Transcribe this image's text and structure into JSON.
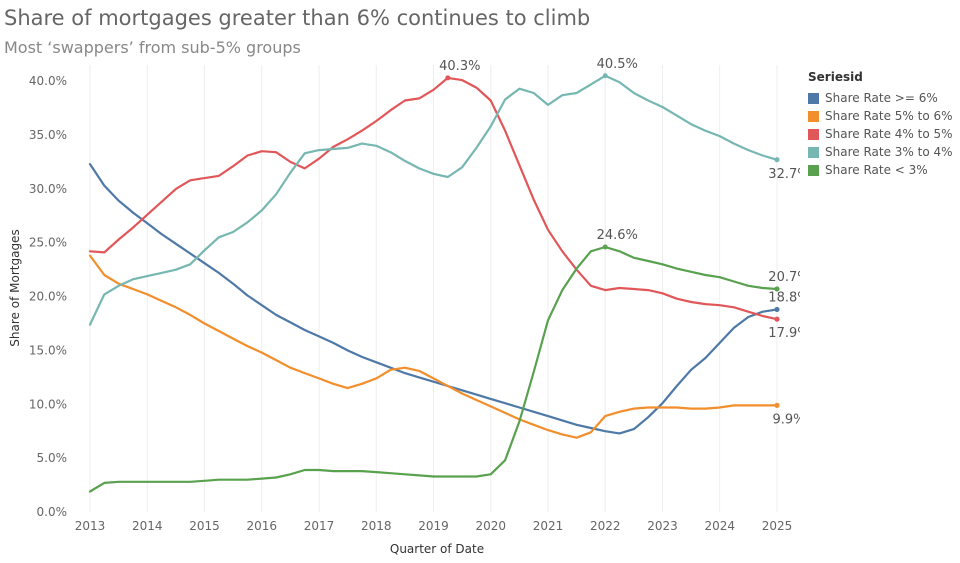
{
  "title": "Share of mortgages greater than  6% continues to climb",
  "subtitle": "Most ‘swappers’ from sub-5% groups",
  "chart_data": {
    "type": "line",
    "xlabel": "Quarter of Date",
    "ylabel": "Share of Mortgages",
    "xlim": [
      2012.65,
      2025.35
    ],
    "ylim": [
      0,
      41.5
    ],
    "x_ticks": [
      2013,
      2014,
      2015,
      2016,
      2017,
      2018,
      2019,
      2020,
      2021,
      2022,
      2023,
      2024,
      2025
    ],
    "x_tick_labels": [
      "2013",
      "2014",
      "2015",
      "2016",
      "2017",
      "2018",
      "2019",
      "2020",
      "2021",
      "2022",
      "2023",
      "2024",
      "2025"
    ],
    "y_ticks": [
      0,
      5,
      10,
      15,
      20,
      25,
      30,
      35,
      40
    ],
    "y_tick_labels": [
      "0.0%",
      "5.0%",
      "10.0%",
      "15.0%",
      "20.0%",
      "25.0%",
      "30.0%",
      "35.0%",
      "40.0%"
    ],
    "grid": "vertical",
    "legend_title": "Seriesid",
    "legend_position": "right",
    "x": [
      2013.0,
      2013.25,
      2013.5,
      2013.75,
      2014.0,
      2014.25,
      2014.5,
      2014.75,
      2015.0,
      2015.25,
      2015.5,
      2015.75,
      2016.0,
      2016.25,
      2016.5,
      2016.75,
      2017.0,
      2017.25,
      2017.5,
      2017.75,
      2018.0,
      2018.25,
      2018.5,
      2018.75,
      2019.0,
      2019.25,
      2019.5,
      2019.75,
      2020.0,
      2020.25,
      2020.5,
      2020.75,
      2021.0,
      2021.25,
      2021.5,
      2021.75,
      2022.0,
      2022.25,
      2022.5,
      2022.75,
      2023.0,
      2023.25,
      2023.5,
      2023.75,
      2024.0,
      2024.25,
      2024.5,
      2024.75,
      2025.0
    ],
    "series": [
      {
        "name": "Share Rate >= 6%",
        "color": "#4e79a7",
        "values": [
          32.3,
          30.3,
          28.9,
          27.8,
          26.8,
          25.8,
          24.9,
          24.0,
          23.1,
          22.2,
          21.2,
          20.1,
          19.2,
          18.3,
          17.6,
          16.9,
          16.3,
          15.7,
          15.0,
          14.4,
          13.9,
          13.4,
          12.9,
          12.5,
          12.1,
          11.7,
          11.3,
          10.9,
          10.5,
          10.1,
          9.7,
          9.3,
          8.9,
          8.5,
          8.1,
          7.8,
          7.5,
          7.3,
          7.7,
          8.8,
          10.1,
          11.7,
          13.2,
          14.3,
          15.7,
          17.1,
          18.1,
          18.6,
          18.8
        ]
      },
      {
        "name": "Share Rate 5% to 6%",
        "color": "#f28e2b",
        "values": [
          23.8,
          22.0,
          21.2,
          20.7,
          20.2,
          19.6,
          19.0,
          18.3,
          17.5,
          16.8,
          16.1,
          15.4,
          14.8,
          14.1,
          13.4,
          12.9,
          12.4,
          11.9,
          11.5,
          11.9,
          12.4,
          13.2,
          13.4,
          13.1,
          12.4,
          11.7,
          11.0,
          10.4,
          9.8,
          9.2,
          8.6,
          8.1,
          7.6,
          7.2,
          6.9,
          7.4,
          8.9,
          9.3,
          9.6,
          9.7,
          9.7,
          9.7,
          9.6,
          9.6,
          9.7,
          9.9,
          9.9,
          9.9,
          9.9
        ]
      },
      {
        "name": "Share Rate 4% to 5%",
        "color": "#e15759",
        "values": [
          24.2,
          24.1,
          25.3,
          26.4,
          27.6,
          28.8,
          30.0,
          30.8,
          31.0,
          31.2,
          32.1,
          33.1,
          33.5,
          33.4,
          32.5,
          31.9,
          32.8,
          33.9,
          34.6,
          35.4,
          36.3,
          37.3,
          38.2,
          38.4,
          39.2,
          40.3,
          40.1,
          39.4,
          38.2,
          35.4,
          32.2,
          29.0,
          26.2,
          24.2,
          22.5,
          21.0,
          20.6,
          20.8,
          20.7,
          20.6,
          20.3,
          19.8,
          19.5,
          19.3,
          19.2,
          19.0,
          18.6,
          18.2,
          17.9
        ]
      },
      {
        "name": "Share Rate 3% to 4%",
        "color": "#76b7b2",
        "values": [
          17.4,
          20.2,
          21.0,
          21.6,
          21.9,
          22.2,
          22.5,
          23.0,
          24.3,
          25.5,
          26.0,
          26.9,
          28.0,
          29.5,
          31.5,
          33.3,
          33.6,
          33.7,
          33.8,
          34.2,
          34.0,
          33.4,
          32.6,
          31.9,
          31.4,
          31.1,
          32.0,
          33.8,
          35.8,
          38.3,
          39.3,
          38.9,
          37.8,
          38.7,
          38.9,
          39.7,
          40.5,
          39.9,
          38.9,
          38.2,
          37.6,
          36.8,
          36.0,
          35.4,
          34.9,
          34.2,
          33.6,
          33.1,
          32.7
        ]
      },
      {
        "name": "Share Rate < 3%",
        "color": "#59a14f",
        "values": [
          1.9,
          2.7,
          2.8,
          2.8,
          2.8,
          2.8,
          2.8,
          2.8,
          2.9,
          3.0,
          3.0,
          3.0,
          3.1,
          3.2,
          3.5,
          3.9,
          3.9,
          3.8,
          3.8,
          3.8,
          3.7,
          3.6,
          3.5,
          3.4,
          3.3,
          3.3,
          3.3,
          3.3,
          3.5,
          4.8,
          8.4,
          13.0,
          17.8,
          20.6,
          22.6,
          24.2,
          24.6,
          24.2,
          23.6,
          23.3,
          23.0,
          22.6,
          22.3,
          22.0,
          21.8,
          21.4,
          21.0,
          20.8,
          20.7
        ]
      }
    ],
    "annotations": [
      {
        "text": "40.3%",
        "x": 2019.25,
        "y": 40.3,
        "series": "Share Rate 4% to 5%",
        "position": "above"
      },
      {
        "text": "40.5%",
        "x": 2022.0,
        "y": 40.5,
        "series": "Share Rate 3% to 4%",
        "position": "above"
      },
      {
        "text": "24.6%",
        "x": 2022.0,
        "y": 24.6,
        "series": "Share Rate < 3%",
        "position": "above"
      },
      {
        "text": "32.7%",
        "x": 2025.0,
        "y": 32.7,
        "series": "Share Rate 3% to 4%",
        "position": "below"
      },
      {
        "text": "20.7%",
        "x": 2025.0,
        "y": 20.7,
        "series": "Share Rate < 3%",
        "position": "above"
      },
      {
        "text": "18.8%",
        "x": 2025.0,
        "y": 18.8,
        "series": "Share Rate >= 6%",
        "position": "above"
      },
      {
        "text": "17.9%",
        "x": 2025.0,
        "y": 17.9,
        "series": "Share Rate 4% to 5%",
        "position": "below"
      },
      {
        "text": "9.9%",
        "x": 2025.0,
        "y": 9.9,
        "series": "Share Rate 5% to 6%",
        "position": "below"
      }
    ]
  }
}
